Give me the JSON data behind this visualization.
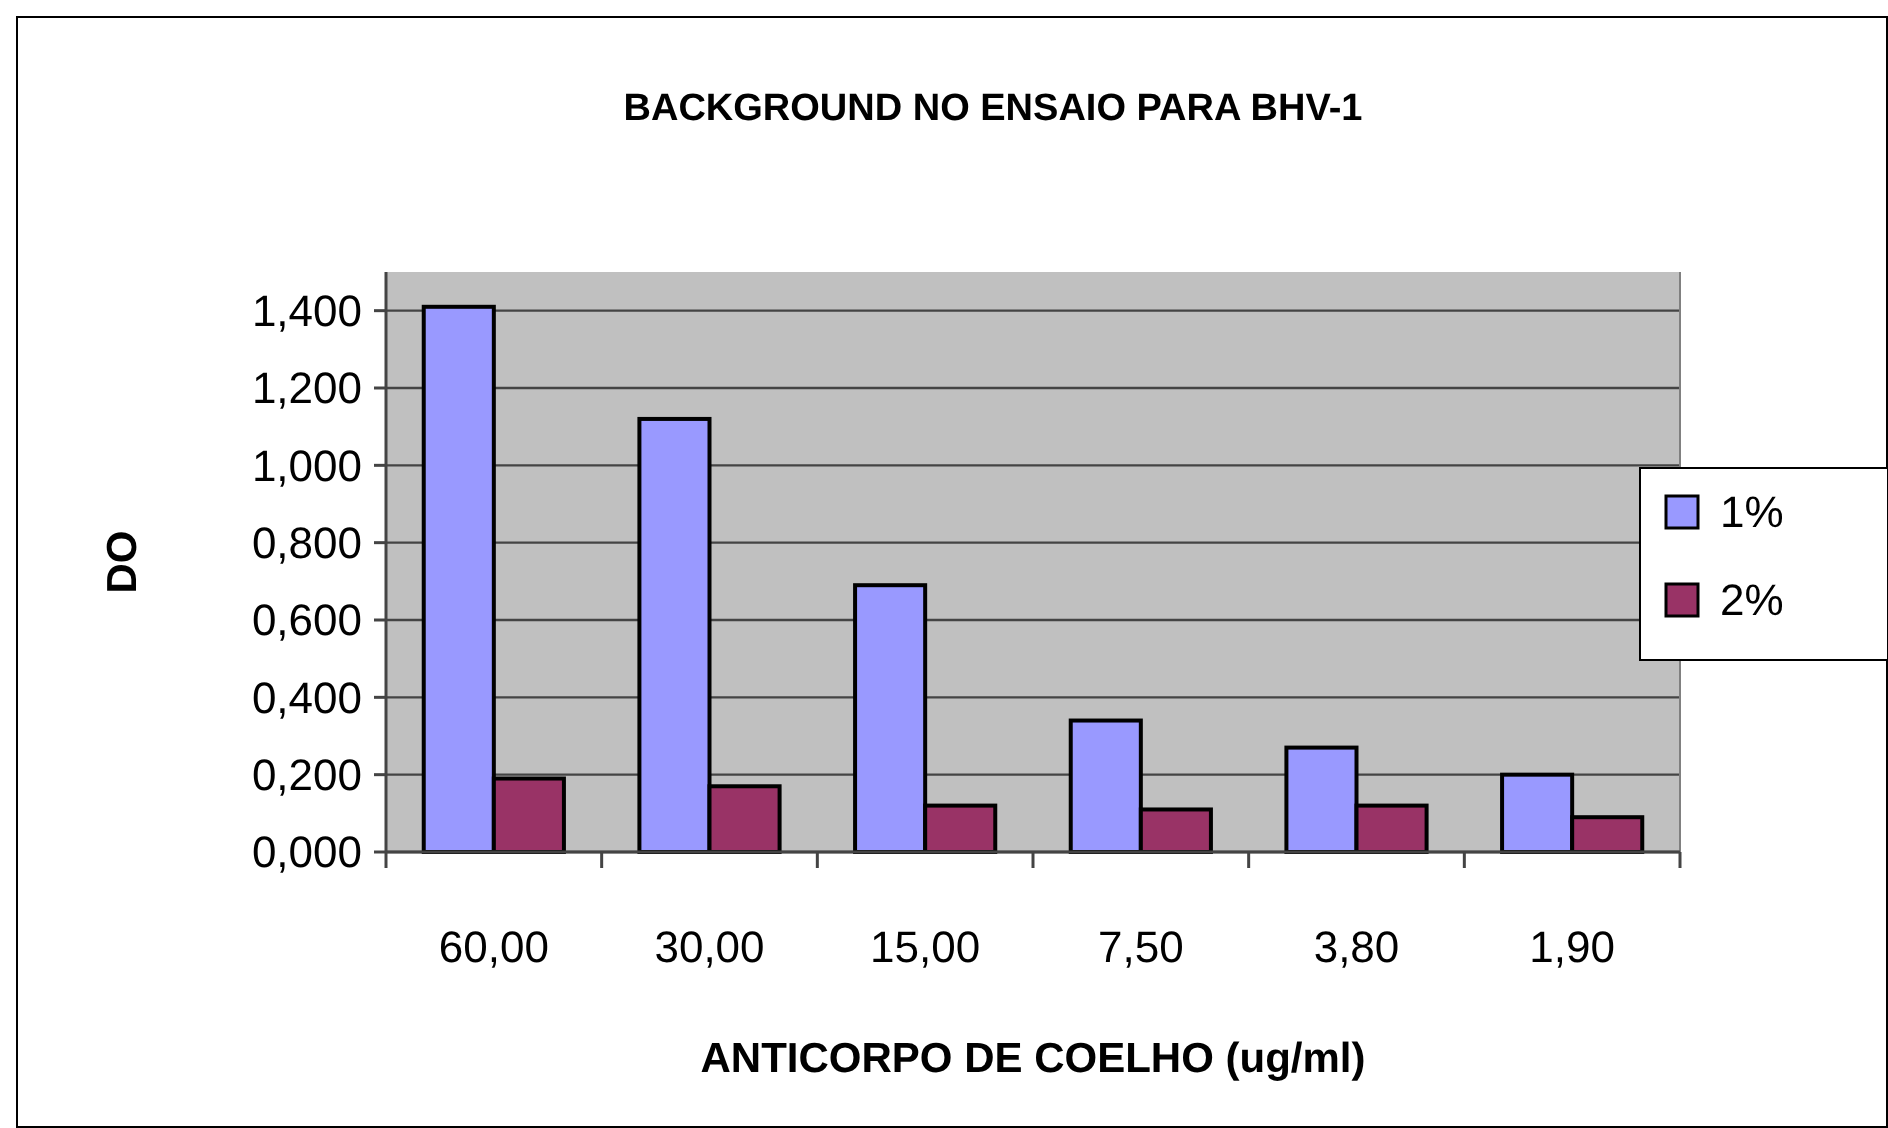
{
  "chart_data": {
    "type": "bar",
    "title": "BACKGROUND NO ENSAIO PARA BHV-1",
    "xlabel": "ANTICORPO DE COELHO (ug/ml)",
    "ylabel": "DO",
    "categories": [
      "60,00",
      "30,00",
      "15,00",
      "7,50",
      "3,80",
      "1,90"
    ],
    "series": [
      {
        "name": "1%",
        "color": "#9999ff",
        "values": [
          1.41,
          1.12,
          0.69,
          0.34,
          0.27,
          0.2
        ]
      },
      {
        "name": "2%",
        "color": "#993366",
        "values": [
          0.19,
          0.17,
          0.12,
          0.11,
          0.12,
          0.09
        ]
      }
    ],
    "ylim": [
      0,
      1.5
    ],
    "yticks": [
      {
        "value": 0,
        "label": "0,000"
      },
      {
        "value": 0.2,
        "label": "0,200"
      },
      {
        "value": 0.4,
        "label": "0,400"
      },
      {
        "value": 0.6,
        "label": "0,600"
      },
      {
        "value": 0.8,
        "label": "0,800"
      },
      {
        "value": 1,
        "label": "1,000"
      },
      {
        "value": 1.2,
        "label": "1,200"
      },
      {
        "value": 1.4,
        "label": "1,400"
      }
    ],
    "grid": "y",
    "legend": "right"
  }
}
